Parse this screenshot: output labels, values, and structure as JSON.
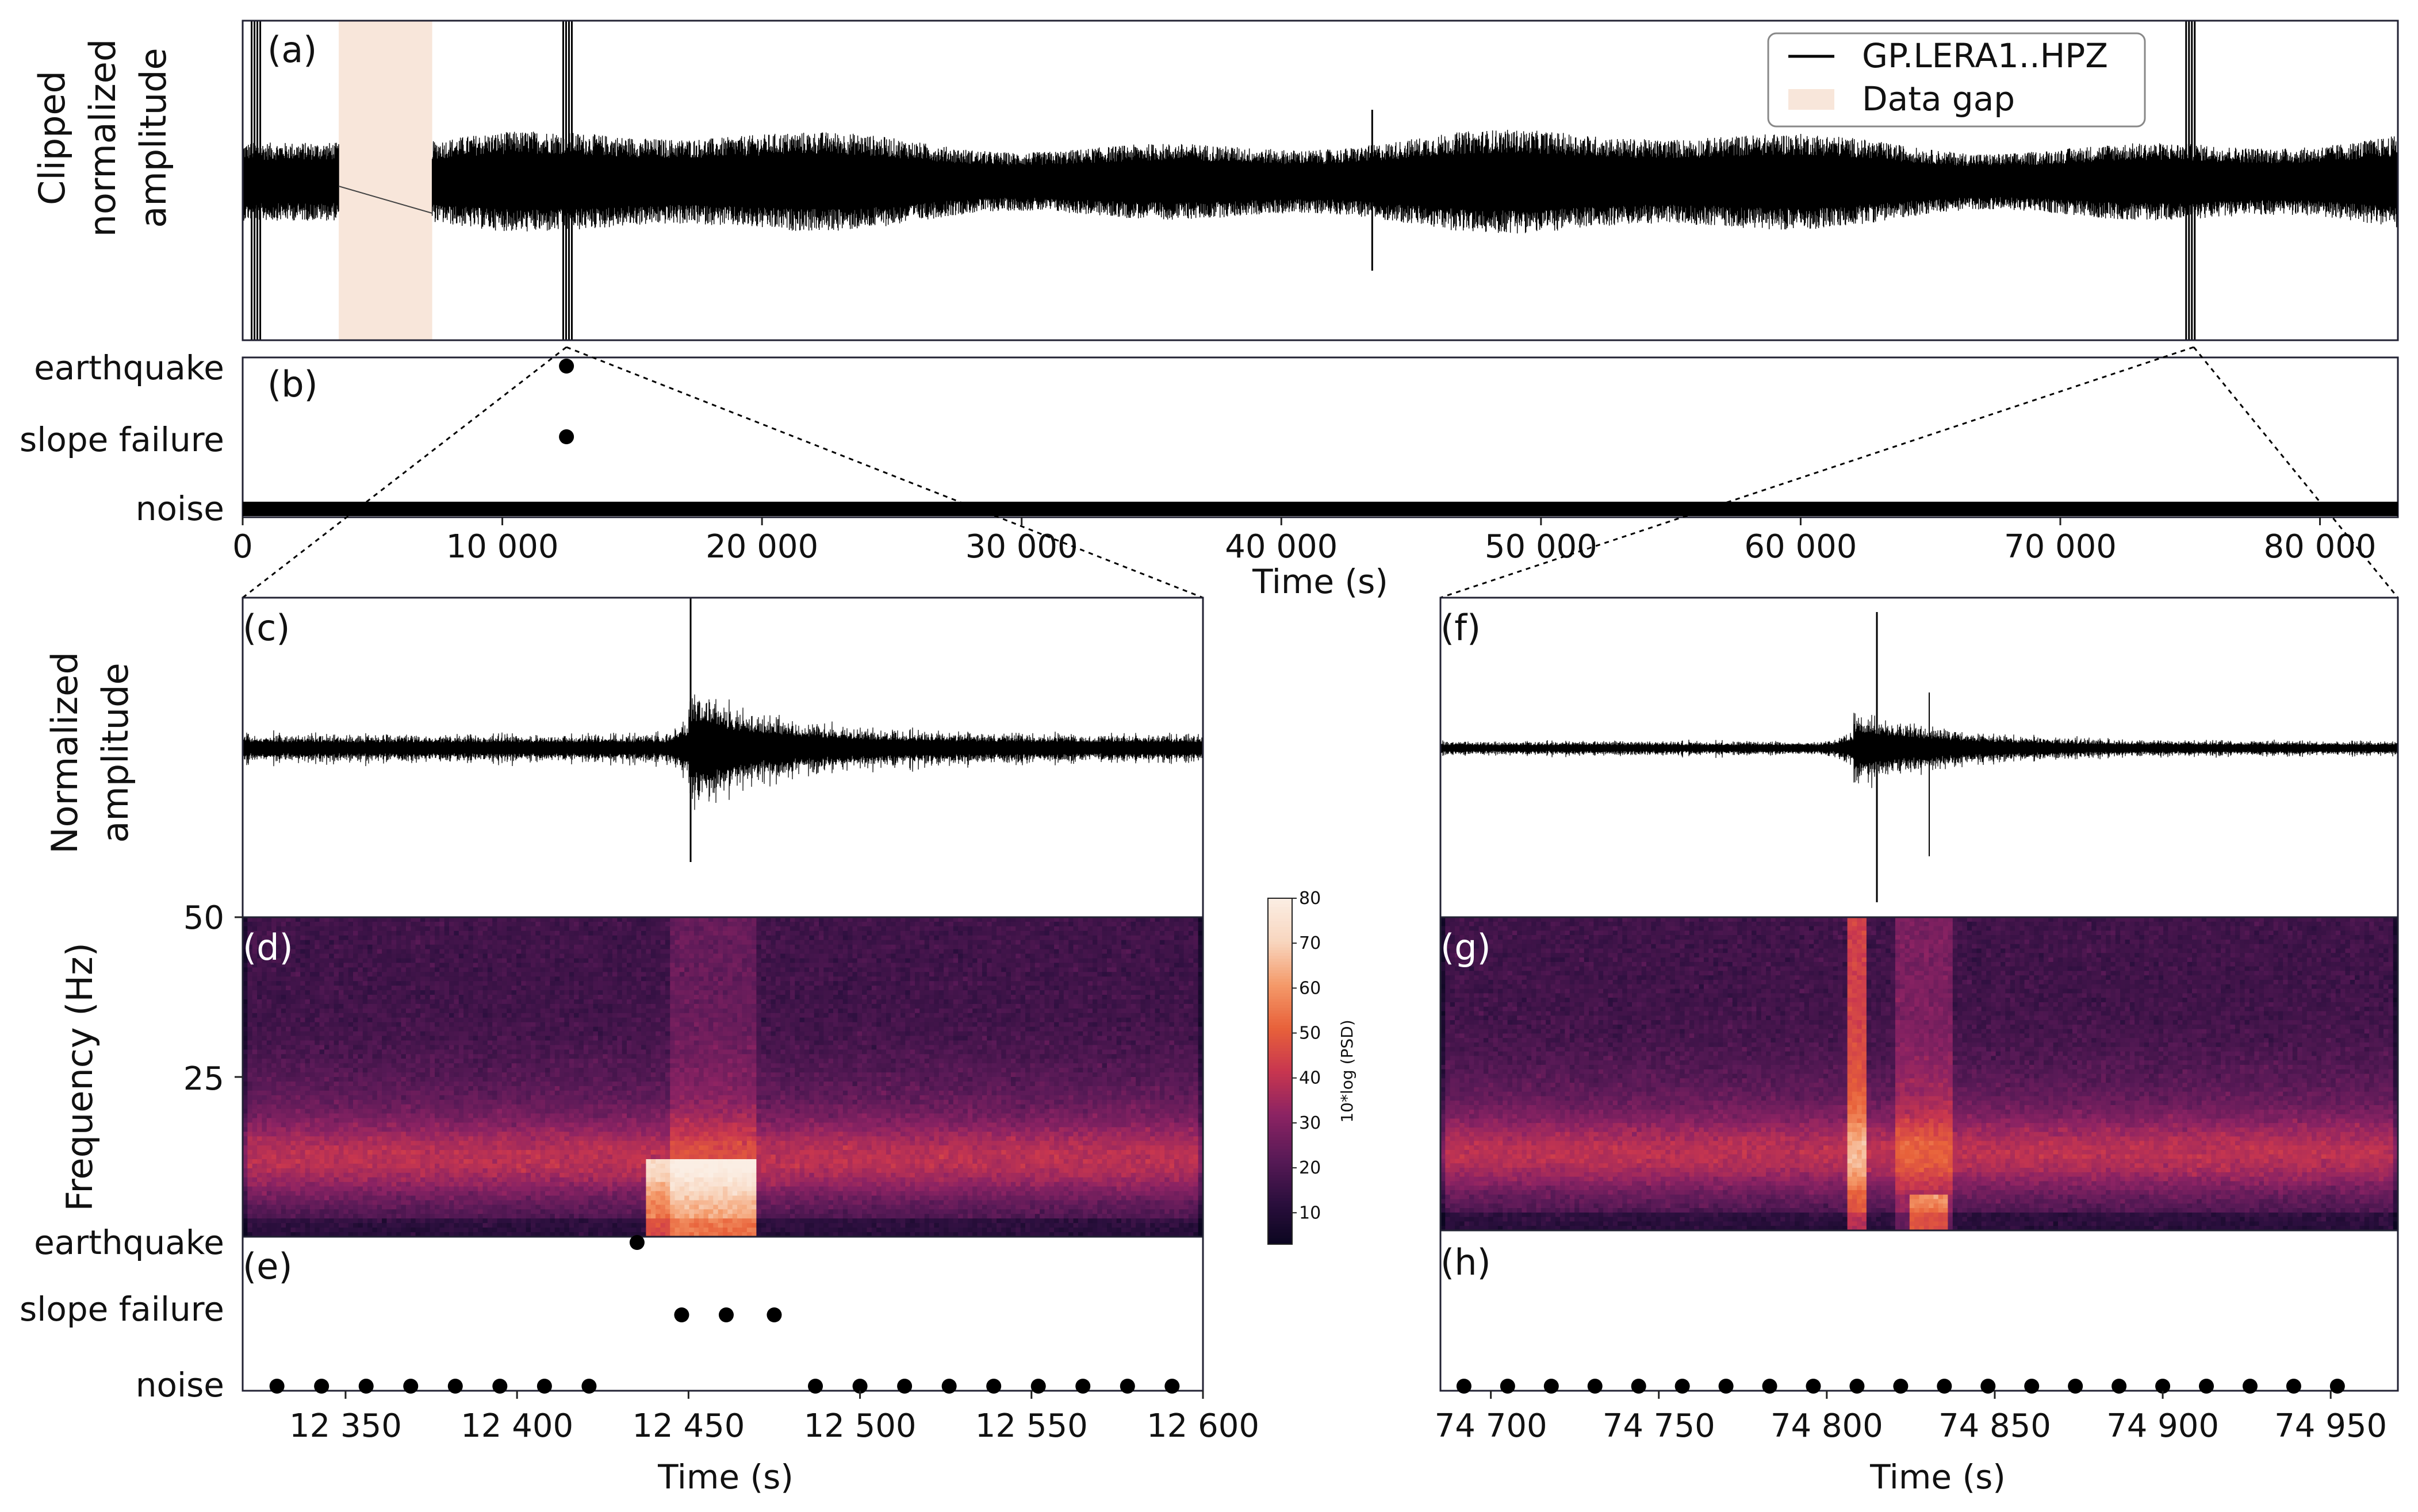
{
  "figure": {
    "panel_letters": [
      "(a)",
      "(b)",
      "(c)",
      "(d)",
      "(e)",
      "(f)",
      "(g)",
      "(h)"
    ]
  },
  "colors": {
    "trace": "#000000",
    "gap": "#f8e6da",
    "axis": "#222233",
    "colormap": [
      "#0b0620",
      "#2c0f3e",
      "#5a1a57",
      "#8c2363",
      "#c8364f",
      "#e8613a",
      "#f49a6a",
      "#f8d6bf",
      "#fbeee4"
    ]
  },
  "chart_data": [
    {
      "id": "a",
      "type": "line",
      "ylabel": [
        "Clipped",
        "normalized",
        "amplitude"
      ],
      "xlim": [
        0,
        83000
      ],
      "legend": {
        "placement": "top-right",
        "entries": [
          "GP.LERA1..HPZ",
          "Data gap"
        ]
      },
      "data_gap": [
        3700,
        7300
      ],
      "events": [
        {
          "x": 500
        },
        {
          "x": 12500
        },
        {
          "x": 75000
        },
        {
          "x": 43500
        }
      ]
    },
    {
      "id": "b",
      "type": "scatter",
      "categories": [
        "earthquake",
        "slope failure",
        "noise"
      ],
      "xlabel": "Time (s)",
      "xlim": [
        0,
        83000
      ],
      "xticks": [
        "0",
        "10 000",
        "20 000",
        "30 000",
        "40 000",
        "50 000",
        "60 000",
        "70 000",
        "80 000"
      ],
      "xtick_values": [
        0,
        10000,
        20000,
        30000,
        40000,
        50000,
        60000,
        70000,
        80000
      ],
      "points": [
        {
          "category": "earthquake",
          "x": 12470
        },
        {
          "category": "slope failure",
          "x": 12470
        }
      ],
      "noise_band": [
        0,
        83000
      ]
    },
    {
      "id": "c",
      "type": "line",
      "ylabel": [
        "Normalized",
        "amplitude"
      ],
      "xlim": [
        12320,
        12600
      ],
      "event_onset": 12450
    },
    {
      "id": "d",
      "type": "heatmap",
      "ylabel": "Frequency (Hz)",
      "yticks": [
        "50",
        "25"
      ],
      "ytick_values": [
        50,
        25
      ],
      "ylim": [
        0,
        50
      ],
      "xlim": [
        12320,
        12600
      ],
      "colorbar": {
        "label": "10*log (PSD)",
        "ticks": [
          "10",
          "20",
          "30",
          "40",
          "50",
          "60",
          "70",
          "80"
        ],
        "range": [
          3,
          80
        ]
      }
    },
    {
      "id": "e",
      "type": "scatter",
      "categories": [
        "earthquake",
        "slope failure",
        "noise"
      ],
      "xlabel": "Time (s)",
      "xlim": [
        12320,
        12600
      ],
      "xticks": [
        "12 350",
        "12 400",
        "12 450",
        "12 500",
        "12 550",
        "12 600"
      ],
      "xtick_values": [
        12350,
        12400,
        12450,
        12500,
        12550,
        12600
      ],
      "earthquake": [
        12435
      ],
      "slope_failure": [
        12448,
        12461,
        12475
      ],
      "noise": [
        12330,
        12343,
        12356,
        12369,
        12382,
        12395,
        12408,
        12421,
        12487,
        12500,
        12513,
        12526,
        12539,
        12552,
        12565,
        12578,
        12591
      ]
    },
    {
      "id": "f",
      "type": "line",
      "xlim": [
        74685,
        74970
      ],
      "event_onset": 74808
    },
    {
      "id": "g",
      "type": "heatmap",
      "ylim": [
        0,
        50
      ],
      "xlim": [
        74685,
        74970
      ]
    },
    {
      "id": "h",
      "type": "scatter",
      "xlabel": "Time (s)",
      "xlim": [
        74685,
        74970
      ],
      "xticks": [
        "74 700",
        "74 750",
        "74 800",
        "74 850",
        "74 900",
        "74 950"
      ],
      "xtick_values": [
        74700,
        74750,
        74800,
        74850,
        74900,
        74950
      ],
      "earthquake": [],
      "slope_failure": [],
      "noise": [
        74692,
        74705,
        74718,
        74731,
        74744,
        74757,
        74770,
        74783,
        74796,
        74809,
        74822,
        74835,
        74848,
        74861,
        74874,
        74887,
        74900,
        74913,
        74926,
        74939,
        74952
      ]
    }
  ]
}
